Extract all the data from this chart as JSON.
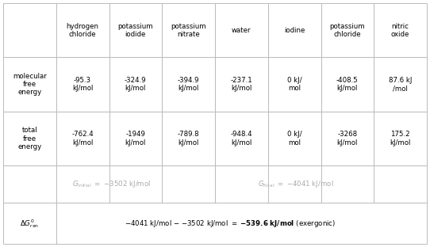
{
  "col_headers": [
    "hydrogen\nchloride",
    "potassium\niodide",
    "potassium\nnitrate",
    "water",
    "iodine",
    "potassium\nchloride",
    "nitric\noxide"
  ],
  "mol_free_energy": [
    "-95.3\nkJ/mol",
    "-324.9\nkJ/mol",
    "-394.9\nkJ/mol",
    "-237.1\nkJ/mol",
    "0 kJ/\nmol",
    "-408.5\nkJ/mol",
    "87.6 kJ\n/mol"
  ],
  "total_free_energy": [
    "-762.4\nkJ/mol",
    "-1949\nkJ/mol",
    "-789.8\nkJ/mol",
    "-948.4\nkJ/mol",
    "0 kJ/\nmol",
    "-3268\nkJ/mol",
    "175.2\nkJ/mol"
  ],
  "row_label_1": "molecular\nfree\nenergy",
  "row_label_2": "total\nfree\nenergy",
  "bg_color": "#ffffff",
  "grid_color": "#bbbbbb",
  "text_color": "#000000",
  "gray_text": "#aaaaaa",
  "delta_g_bold": "-539.6 kJ/mol",
  "delta_g_prefix": "-4041 kJ/mol – -3502 kJ/mol = ",
  "delta_g_suffix": " (exergonic)"
}
